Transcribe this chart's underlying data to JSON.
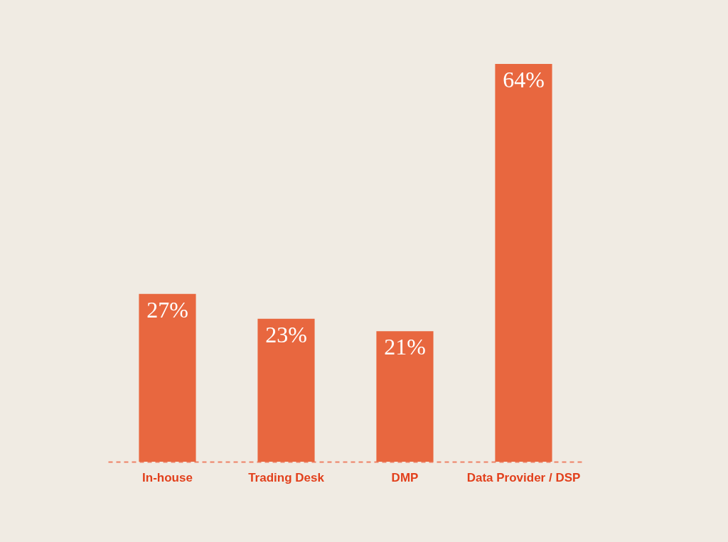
{
  "chart_data": {
    "type": "bar",
    "categories": [
      "In-house",
      "Trading Desk",
      "DMP",
      "Data Provider / DSP"
    ],
    "values": [
      27,
      23,
      21,
      64
    ],
    "value_labels": [
      "27%",
      "23%",
      "21%",
      "64%"
    ],
    "color": "#e8673f",
    "tick_labels": "x",
    "grid": false
  }
}
